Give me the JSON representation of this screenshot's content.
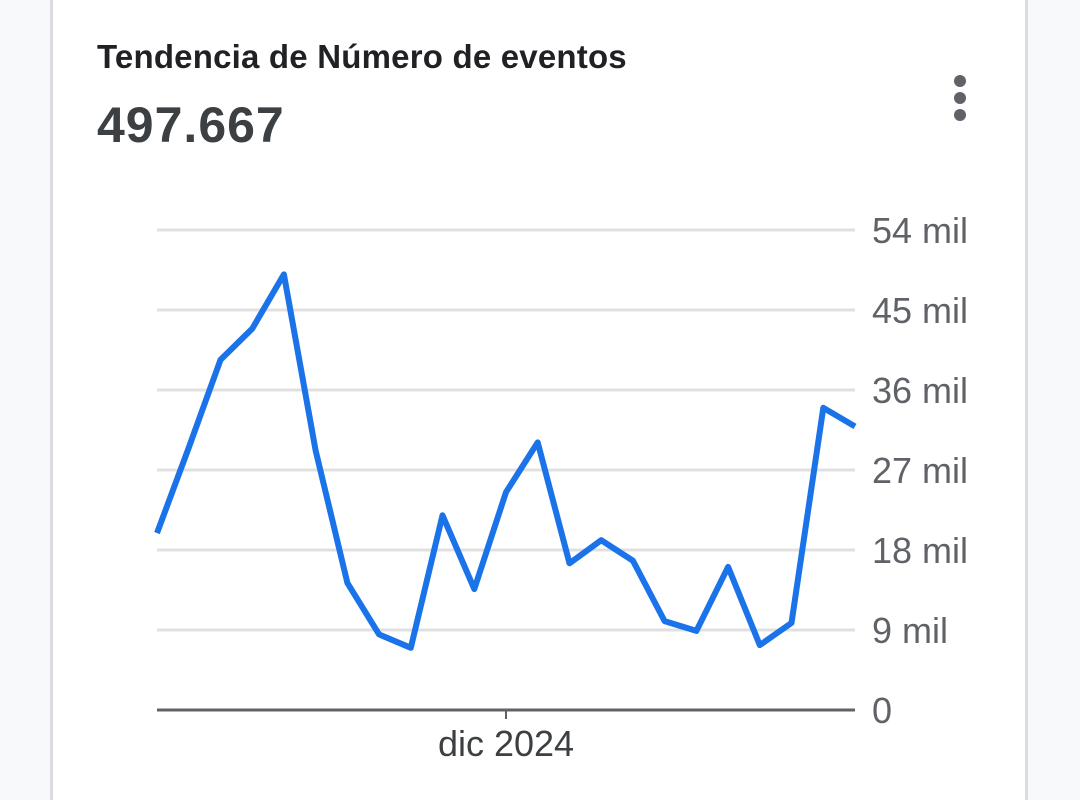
{
  "card": {
    "title": "Tendencia de Número de eventos",
    "total_value": "497.667",
    "menu_icon": "more-vert-icon"
  },
  "colors": {
    "line": "#1a73e8",
    "grid": "#e0e0e0",
    "axis": "#5f6368",
    "title": "#202124"
  },
  "chart_data": {
    "type": "line",
    "title": "Tendencia de Número de eventos",
    "subtitle": "497.667",
    "xlabel": "",
    "ylabel": "",
    "x_tick_labels": [
      "dic 2024"
    ],
    "y_tick_labels": [
      "0",
      "9 mil",
      "18 mil",
      "27 mil",
      "36 mil",
      "45 mil",
      "54 mil"
    ],
    "y_ticks": [
      0,
      9000,
      18000,
      27000,
      36000,
      45000,
      54000
    ],
    "ylim": [
      0,
      54000
    ],
    "grid": true,
    "legend": null,
    "y_axis_position": "right",
    "series": [
      {
        "name": "Número de eventos",
        "values": [
          19900,
          29500,
          39400,
          42900,
          49000,
          29200,
          14300,
          8500,
          7000,
          21900,
          13600,
          24500,
          30100,
          16500,
          19100,
          16800,
          10000,
          8900,
          16100,
          7300,
          9800,
          34000,
          31900
        ]
      }
    ],
    "x_tick_index": 11
  }
}
